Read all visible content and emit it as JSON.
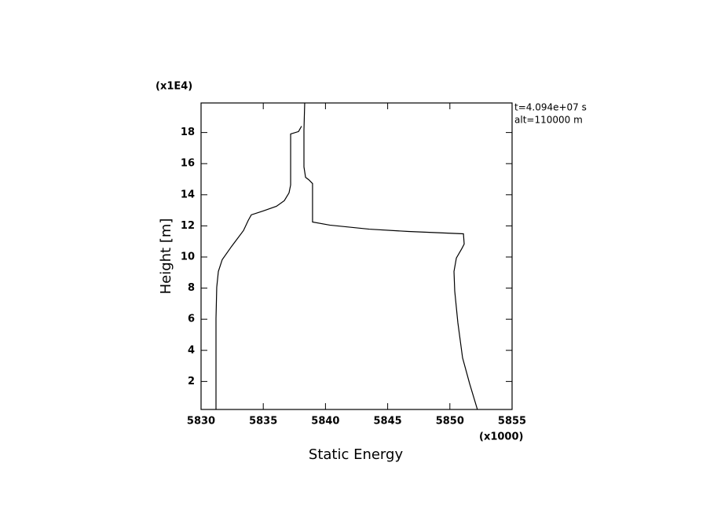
{
  "chart_data": {
    "type": "line",
    "x_label": "Static Energy",
    "y_label": "Height [m]",
    "x_scale_label": "(x1000)",
    "y_scale_label": "(x1E4)",
    "annotations": [
      "t=4.094e+07 s",
      "alt=110000 m"
    ],
    "xlim": [
      5830,
      5855
    ],
    "ylim": [
      0.2,
      19.9
    ],
    "xticks": [
      5830,
      5835,
      5840,
      5845,
      5850,
      5855
    ],
    "yticks": [
      2,
      4,
      6,
      8,
      10,
      12,
      14,
      16,
      18
    ],
    "x": [
      5852.22,
      5851.59,
      5851.02,
      5850.64,
      5850.39,
      5850.33,
      5850.52,
      5850.96,
      5851.15,
      5851.09,
      5846.67,
      5843.51,
      5840.35,
      5838.96,
      5838.96,
      5838.65,
      5838.4,
      5838.27,
      5838.27,
      5838.33,
      null,
      5831.2,
      5831.2,
      5831.26,
      5831.39,
      5831.7,
      5832.46,
      5833.41,
      5833.79,
      5834.04,
      5834.99,
      5836.06,
      5836.69,
      5837.07,
      5837.2,
      5837.2,
      5837.83,
      5838.08
    ],
    "series": [
      {
        "color": "#000000",
        "values": [
          0.18,
          1.85,
          3.52,
          5.79,
          7.81,
          9.07,
          9.93,
          10.54,
          10.83,
          11.49,
          11.64,
          11.79,
          12.05,
          12.25,
          14.72,
          14.97,
          15.12,
          15.79,
          18.16,
          19.88,
          null,
          0.18,
          6.04,
          8.06,
          9.07,
          9.83,
          10.69,
          11.7,
          12.35,
          12.71,
          12.96,
          13.26,
          13.62,
          14.12,
          14.63,
          17.91,
          18.06,
          18.41
        ]
      }
    ]
  }
}
